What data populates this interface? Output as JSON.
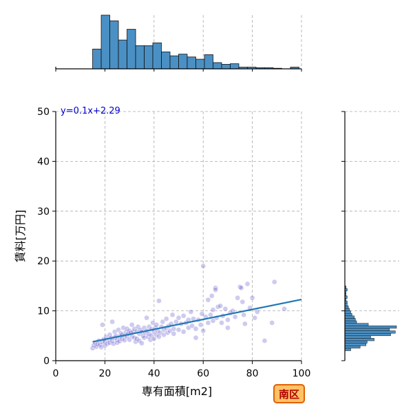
{
  "chart_data": {
    "type": "scatter",
    "xlabel": "専有面積[m2]",
    "ylabel": "賃料[万円]",
    "xlim": [
      0,
      100
    ],
    "ylim": [
      0,
      50
    ],
    "xticks": [
      0,
      20,
      40,
      60,
      80,
      100
    ],
    "yticks": [
      0,
      10,
      20,
      30,
      40,
      50
    ],
    "xtick_labels": [
      "0",
      "20",
      "40",
      "60",
      "80",
      "100"
    ],
    "ytick_labels": [
      "0",
      "10",
      "20",
      "30",
      "40",
      "50"
    ],
    "grid": true,
    "equation_label": "y=0.1x+2.29",
    "regression": {
      "slope": 0.1,
      "intercept": 2.29,
      "x_range": [
        15,
        100
      ]
    },
    "badge": "南区",
    "colors": {
      "points": "#3a2fc0",
      "regression_line": "#1f77b4",
      "hist_fill": "#4a90c4",
      "badge_fill": "#ffc266",
      "badge_border": "#e06000"
    },
    "points": [
      [
        15,
        2.5
      ],
      [
        15.5,
        3.1
      ],
      [
        16,
        3.6
      ],
      [
        16.5,
        2.8
      ],
      [
        17,
        3.3
      ],
      [
        17.5,
        4.0
      ],
      [
        18,
        3.2
      ],
      [
        18.5,
        2.7
      ],
      [
        19,
        3.7
      ],
      [
        19,
        7.2
      ],
      [
        19.5,
        4.3
      ],
      [
        20,
        3.0
      ],
      [
        20,
        3.8
      ],
      [
        20.5,
        4.8
      ],
      [
        21,
        3.4
      ],
      [
        21.5,
        4.2
      ],
      [
        22,
        3.6
      ],
      [
        22,
        5.2
      ],
      [
        22.5,
        4.6
      ],
      [
        23,
        7.8
      ],
      [
        23,
        4.0
      ],
      [
        23.5,
        3.4
      ],
      [
        24,
        4.6
      ],
      [
        24,
        5.8
      ],
      [
        24.5,
        5.0
      ],
      [
        25,
        4.2
      ],
      [
        25,
        3.6
      ],
      [
        25.5,
        6.2
      ],
      [
        26,
        4.8
      ],
      [
        26,
        3.9
      ],
      [
        26.5,
        5.5
      ],
      [
        27,
        5.2
      ],
      [
        27,
        4.4
      ],
      [
        27.5,
        6.6
      ],
      [
        28,
        5.0
      ],
      [
        28,
        4.1
      ],
      [
        28.5,
        5.7
      ],
      [
        29,
        6.4
      ],
      [
        29,
        4.8
      ],
      [
        29.5,
        5.4
      ],
      [
        30,
        4.2
      ],
      [
        30,
        6.0
      ],
      [
        30.5,
        5.6
      ],
      [
        31,
        4.9
      ],
      [
        31,
        7.2
      ],
      [
        31.5,
        5.8
      ],
      [
        32,
        4.6
      ],
      [
        32,
        6.4
      ],
      [
        32.5,
        3.8
      ],
      [
        33,
        5.9
      ],
      [
        33,
        4.4
      ],
      [
        33.5,
        6.8
      ],
      [
        34,
        5.4
      ],
      [
        34,
        4.0
      ],
      [
        34.5,
        6.2
      ],
      [
        35,
        5.8
      ],
      [
        35,
        3.5
      ],
      [
        35.5,
        5.0
      ],
      [
        36,
        6.6
      ],
      [
        36,
        4.6
      ],
      [
        36.5,
        5.6
      ],
      [
        37,
        6.0
      ],
      [
        37,
        8.6
      ],
      [
        37.5,
        4.8
      ],
      [
        38,
        5.4
      ],
      [
        38,
        6.8
      ],
      [
        38.5,
        4.2
      ],
      [
        39,
        6.3
      ],
      [
        39,
        5.0
      ],
      [
        39.5,
        7.6
      ],
      [
        40,
        5.8
      ],
      [
        40,
        4.4
      ],
      [
        40.5,
        6.6
      ],
      [
        41,
        5.2
      ],
      [
        41,
        7.2
      ],
      [
        41.5,
        6.0
      ],
      [
        42,
        12.0
      ],
      [
        42,
        4.8
      ],
      [
        42.5,
        5.6
      ],
      [
        43,
        6.8
      ],
      [
        43.5,
        7.8
      ],
      [
        44,
        5.2
      ],
      [
        44,
        6.2
      ],
      [
        45,
        6.6
      ],
      [
        45,
        8.4
      ],
      [
        45.5,
        5.6
      ],
      [
        46,
        7.0
      ],
      [
        46.5,
        6.0
      ],
      [
        47,
        7.4
      ],
      [
        47.5,
        9.2
      ],
      [
        48,
        6.4
      ],
      [
        48,
        5.4
      ],
      [
        49,
        7.8
      ],
      [
        50,
        6.2
      ],
      [
        50,
        8.6
      ],
      [
        51,
        7.4
      ],
      [
        52,
        5.8
      ],
      [
        52,
        9.0
      ],
      [
        53,
        7.6
      ],
      [
        54,
        6.6
      ],
      [
        54,
        8.2
      ],
      [
        55,
        9.8
      ],
      [
        55.5,
        7.0
      ],
      [
        56,
        8.4
      ],
      [
        57,
        6.4
      ],
      [
        57,
        4.6
      ],
      [
        58,
        8.2
      ],
      [
        59,
        7.2
      ],
      [
        59.5,
        9.4
      ],
      [
        60,
        19.0
      ],
      [
        60,
        6.0
      ],
      [
        61,
        8.8
      ],
      [
        62,
        7.6
      ],
      [
        62,
        12.2
      ],
      [
        63,
        9.2
      ],
      [
        63.5,
        13.0
      ],
      [
        64,
        8.0
      ],
      [
        64,
        10.2
      ],
      [
        65,
        14.6
      ],
      [
        65,
        14.2
      ],
      [
        65.5,
        8.6
      ],
      [
        66,
        10.8
      ],
      [
        67,
        11.0
      ],
      [
        67.5,
        7.6
      ],
      [
        68,
        9.0
      ],
      [
        69,
        10.4
      ],
      [
        70,
        8.2
      ],
      [
        70,
        6.6
      ],
      [
        71,
        9.6
      ],
      [
        72,
        10.0
      ],
      [
        73,
        8.8
      ],
      [
        74,
        12.6
      ],
      [
        75,
        14.8
      ],
      [
        75.5,
        14.6
      ],
      [
        76,
        11.8
      ],
      [
        76.5,
        9.2
      ],
      [
        77,
        7.4
      ],
      [
        78,
        15.4
      ],
      [
        79,
        10.6
      ],
      [
        80,
        12.6
      ],
      [
        81,
        8.6
      ],
      [
        82,
        9.8
      ],
      [
        85,
        4.0
      ],
      [
        88,
        7.6
      ],
      [
        89,
        15.8
      ],
      [
        93,
        10.4
      ]
    ],
    "hist_x": {
      "bin_edges": [
        15,
        18.5,
        22,
        25.5,
        29,
        32.5,
        36,
        39.5,
        43,
        46.5,
        50,
        53.5,
        57,
        60.5,
        64,
        67.5,
        71,
        74.5,
        78,
        81.5,
        85,
        88.5,
        92,
        95.5,
        99
      ],
      "counts": [
        35,
        95,
        85,
        51,
        70,
        41,
        41,
        46,
        30,
        23,
        26,
        21,
        17,
        25,
        11,
        8,
        9,
        3,
        3,
        2,
        2,
        1,
        0,
        3
      ]
    },
    "hist_y": {
      "bin_edges": [
        2,
        2.5,
        3,
        3.5,
        4,
        4.5,
        5,
        5.5,
        6,
        6.5,
        7,
        7.5,
        8,
        8.5,
        9,
        9.5,
        10,
        10.5,
        11,
        11.5,
        12,
        12.5,
        13,
        13.5,
        14,
        14.5,
        15
      ],
      "counts": [
        5,
        13,
        18,
        19,
        25,
        22,
        39,
        43,
        38,
        44,
        20,
        10,
        9,
        8,
        6,
        5,
        4,
        3,
        2,
        2,
        1,
        2,
        1,
        1,
        2,
        1
      ]
    }
  }
}
